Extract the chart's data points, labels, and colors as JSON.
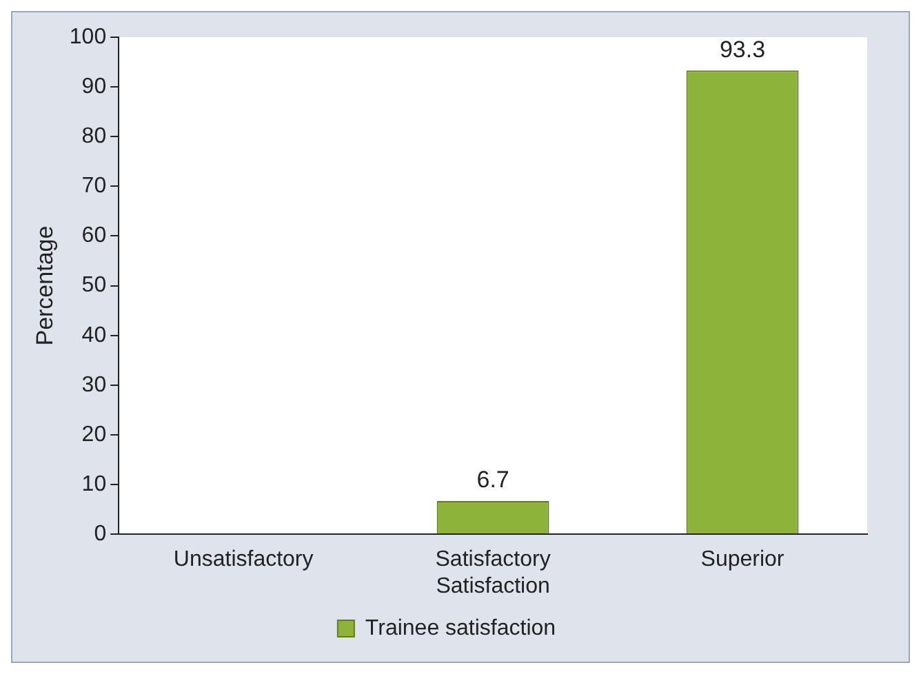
{
  "chart_data": {
    "type": "bar",
    "ylabel": "Percentage",
    "categories": [
      "Unsatisfactory",
      "Satisfactory\nSatisfaction",
      "Superior"
    ],
    "series": [
      {
        "name": "Trainee satisfaction",
        "color": "#8db33a",
        "values": [
          0,
          6.7,
          93.3
        ],
        "value_labels": [
          null,
          "6.7",
          "93.3"
        ]
      }
    ],
    "ylim": [
      0,
      100
    ],
    "yticks": [
      0,
      10,
      20,
      30,
      40,
      50,
      60,
      70,
      80,
      90,
      100
    ],
    "grid": false,
    "legend": "bottom"
  }
}
